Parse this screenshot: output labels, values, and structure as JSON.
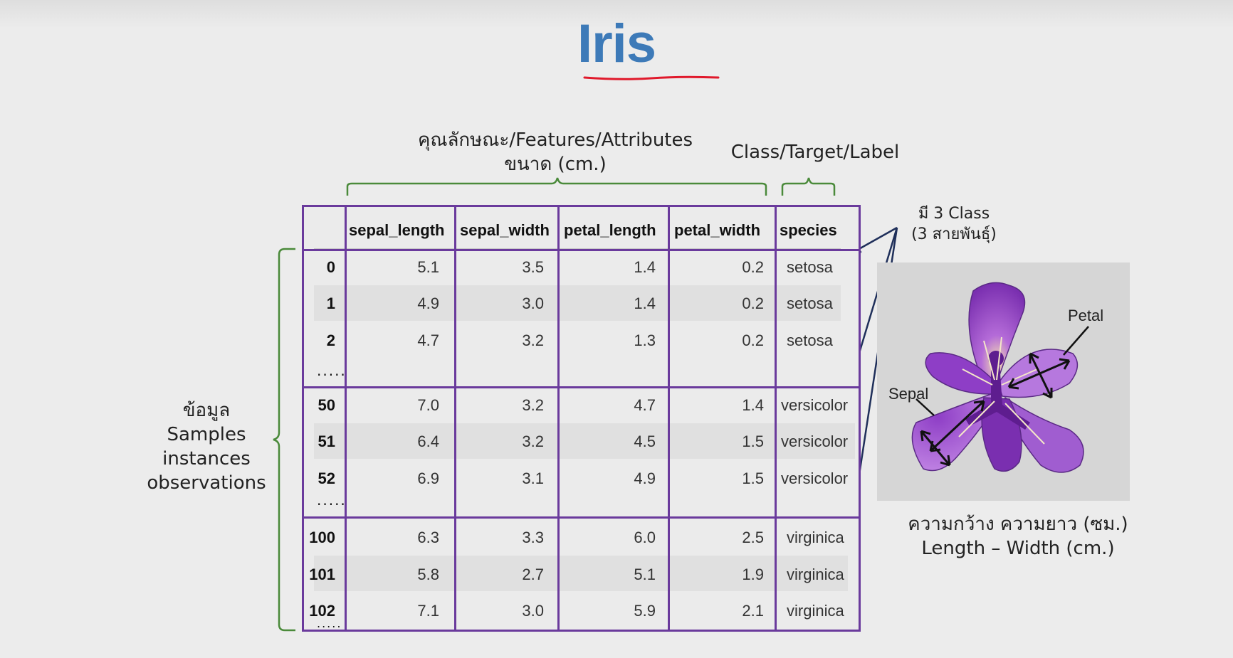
{
  "title": "Iris",
  "labels": {
    "features_line1": "คุณลักษณะ/Features/Attributes",
    "features_line2": "ขนาด (cm.)",
    "class": "Class/Target/Label",
    "classes_count_line1": "มี 3 Class",
    "classes_count_line2": "(3 สายพันธุ์)",
    "samples_line1": "ข้อมูล",
    "samples_line2": "Samples",
    "samples_line3": "instances",
    "samples_line4": "observations",
    "size_line1": "ความกว้าง ความยาว (ซม.)",
    "size_line2": "Length – Width (cm.)",
    "petal": "Petal",
    "sepal": "Sepal"
  },
  "colors": {
    "title": "#3d7ab8",
    "underline": "#e0192b",
    "table_border": "#6a3a9c",
    "brace": "#4a8a3a",
    "arrow": "#1f2f5a"
  },
  "table": {
    "columns": [
      "sepal_length",
      "sepal_width",
      "petal_length",
      "petal_width",
      "species"
    ],
    "ellipsis": ".....",
    "groups": [
      {
        "rows": [
          {
            "index": "0",
            "values": [
              "5.1",
              "3.5",
              "1.4",
              "0.2"
            ],
            "species": "setosa"
          },
          {
            "index": "1",
            "values": [
              "4.9",
              "3.0",
              "1.4",
              "0.2"
            ],
            "species": "setosa"
          },
          {
            "index": "2",
            "values": [
              "4.7",
              "3.2",
              "1.3",
              "0.2"
            ],
            "species": "setosa"
          }
        ]
      },
      {
        "rows": [
          {
            "index": "50",
            "values": [
              "7.0",
              "3.2",
              "4.7",
              "1.4"
            ],
            "species": "versicolor"
          },
          {
            "index": "51",
            "values": [
              "6.4",
              "3.2",
              "4.5",
              "1.5"
            ],
            "species": "versicolor"
          },
          {
            "index": "52",
            "values": [
              "6.9",
              "3.1",
              "4.9",
              "1.5"
            ],
            "species": "versicolor"
          }
        ]
      },
      {
        "rows": [
          {
            "index": "100",
            "values": [
              "6.3",
              "3.3",
              "6.0",
              "2.5"
            ],
            "species": "virginica"
          },
          {
            "index": "101",
            "values": [
              "5.8",
              "2.7",
              "5.1",
              "1.9"
            ],
            "species": "virginica"
          },
          {
            "index": "102",
            "values": [
              "7.1",
              "3.0",
              "5.9",
              "2.1"
            ],
            "species": "virginica"
          }
        ]
      }
    ]
  }
}
